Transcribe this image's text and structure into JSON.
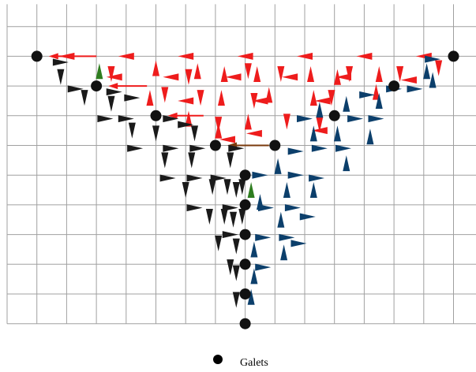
{
  "legend": {
    "label": "Galets",
    "marker_color": "#000000"
  },
  "colors": {
    "grid": "#a0a0a0",
    "galet": "#111111",
    "red": "#ee1c1c",
    "black": "#1a1a1a",
    "blue": "#0c3f6b",
    "green": "#2e7d1f",
    "brown": "#7a3a0c"
  },
  "grid": {
    "columns": 16,
    "rows": 11
  },
  "galets": [
    [
      1,
      2
    ],
    [
      3,
      3
    ],
    [
      5,
      4
    ],
    [
      7,
      5
    ],
    [
      8,
      6
    ],
    [
      8,
      7
    ],
    [
      8,
      8
    ],
    [
      8,
      9
    ],
    [
      8,
      10
    ],
    [
      8,
      11
    ],
    [
      9,
      5
    ],
    [
      11,
      4
    ],
    [
      13,
      3
    ],
    [
      15,
      2
    ]
  ],
  "arrows": [
    {
      "c": "red",
      "x": 2,
      "y": 2,
      "d": "L"
    },
    {
      "c": "red",
      "x": 4,
      "y": 2,
      "d": "L"
    },
    {
      "c": "red",
      "x": 6,
      "y": 2,
      "d": "L"
    },
    {
      "c": "red",
      "x": 8,
      "y": 2,
      "d": "L"
    },
    {
      "c": "red",
      "x": 10,
      "y": 2,
      "d": "L"
    },
    {
      "c": "red",
      "x": 12,
      "y": 2,
      "d": "L"
    },
    {
      "c": "red",
      "x": 14,
      "y": 2,
      "d": "L"
    },
    {
      "c": "red",
      "x": 3.5,
      "y": 2.6,
      "d": "D"
    },
    {
      "c": "red",
      "x": 5,
      "y": 2.4,
      "d": "U"
    },
    {
      "c": "red",
      "x": 6.1,
      "y": 2.7,
      "d": "D"
    },
    {
      "c": "red",
      "x": 6.4,
      "y": 2.5,
      "d": "U"
    },
    {
      "c": "red",
      "x": 7.3,
      "y": 2.6,
      "d": "U"
    },
    {
      "c": "red",
      "x": 8.1,
      "y": 2.5,
      "d": "D"
    },
    {
      "c": "red",
      "x": 8.4,
      "y": 2.6,
      "d": "U"
    },
    {
      "c": "red",
      "x": 9.2,
      "y": 2.6,
      "d": "D"
    },
    {
      "c": "red",
      "x": 10.2,
      "y": 2.6,
      "d": "U"
    },
    {
      "c": "red",
      "x": 11.1,
      "y": 2.7,
      "d": "U"
    },
    {
      "c": "red",
      "x": 11.5,
      "y": 2.6,
      "d": "D"
    },
    {
      "c": "red",
      "x": 12.5,
      "y": 2.6,
      "d": "U"
    },
    {
      "c": "red",
      "x": 13.2,
      "y": 2.6,
      "d": "D"
    },
    {
      "c": "red",
      "x": 14.5,
      "y": 2.4,
      "d": "D"
    },
    {
      "c": "red",
      "x": 3.6,
      "y": 2.7,
      "d": "L"
    },
    {
      "c": "red",
      "x": 5.5,
      "y": 2.7,
      "d": "L"
    },
    {
      "c": "red",
      "x": 7.6,
      "y": 2.7,
      "d": "L"
    },
    {
      "c": "red",
      "x": 9.5,
      "y": 2.7,
      "d": "L"
    },
    {
      "c": "red",
      "x": 11.3,
      "y": 2.7,
      "d": "L"
    },
    {
      "c": "red",
      "x": 13.5,
      "y": 2.8,
      "d": "L"
    },
    {
      "c": "red",
      "x": 4.8,
      "y": 3.4,
      "d": "U"
    },
    {
      "c": "red",
      "x": 5.3,
      "y": 3.3,
      "d": "D"
    },
    {
      "c": "red",
      "x": 6.5,
      "y": 3.4,
      "d": "D"
    },
    {
      "c": "red",
      "x": 7.2,
      "y": 3.4,
      "d": "U"
    },
    {
      "c": "red",
      "x": 8.3,
      "y": 3.5,
      "d": "D"
    },
    {
      "c": "red",
      "x": 8.8,
      "y": 3.3,
      "d": "U"
    },
    {
      "c": "red",
      "x": 10.3,
      "y": 3.4,
      "d": "U"
    },
    {
      "c": "red",
      "x": 10.9,
      "y": 3.4,
      "d": "D"
    },
    {
      "c": "red",
      "x": 12.4,
      "y": 3.2,
      "d": "U"
    },
    {
      "c": "red",
      "x": 6,
      "y": 3.5,
      "d": "L"
    },
    {
      "c": "red",
      "x": 8.5,
      "y": 3.5,
      "d": "L"
    },
    {
      "c": "red",
      "x": 10.6,
      "y": 3.5,
      "d": "L"
    },
    {
      "c": "red",
      "x": 6.1,
      "y": 4.1,
      "d": "U"
    },
    {
      "c": "red",
      "x": 7.1,
      "y": 4.3,
      "d": "D"
    },
    {
      "c": "red",
      "x": 8.1,
      "y": 4.2,
      "d": "U"
    },
    {
      "c": "red",
      "x": 9.4,
      "y": 4.2,
      "d": "D"
    },
    {
      "c": "red",
      "x": 10.5,
      "y": 4.3,
      "d": "D"
    },
    {
      "c": "red",
      "x": 7.1,
      "y": 4.5,
      "d": "U"
    },
    {
      "c": "red",
      "x": 8.3,
      "y": 4.6,
      "d": "L"
    },
    {
      "c": "red",
      "x": 10.5,
      "y": 4.5,
      "d": "L"
    },
    {
      "c": "red",
      "x": 7.4,
      "y": 4.8,
      "d": "L"
    },
    {
      "c": "black",
      "x": 1.8,
      "y": 2.2,
      "d": "R"
    },
    {
      "c": "black",
      "x": 1.8,
      "y": 2.7,
      "d": "D"
    },
    {
      "c": "black",
      "x": 2.3,
      "y": 3.1,
      "d": "R"
    },
    {
      "c": "black",
      "x": 2.6,
      "y": 3.4,
      "d": "D"
    },
    {
      "c": "black",
      "x": 3.6,
      "y": 3.2,
      "d": "R"
    },
    {
      "c": "black",
      "x": 3.5,
      "y": 3.6,
      "d": "D"
    },
    {
      "c": "black",
      "x": 4.2,
      "y": 3.4,
      "d": "R"
    },
    {
      "c": "black",
      "x": 3.3,
      "y": 4.1,
      "d": "R"
    },
    {
      "c": "black",
      "x": 4,
      "y": 4.1,
      "d": "R"
    },
    {
      "c": "black",
      "x": 4.2,
      "y": 4.5,
      "d": "D"
    },
    {
      "c": "black",
      "x": 5.5,
      "y": 4.1,
      "d": "R"
    },
    {
      "c": "black",
      "x": 5,
      "y": 4.6,
      "d": "D"
    },
    {
      "c": "black",
      "x": 6,
      "y": 4.3,
      "d": "R"
    },
    {
      "c": "black",
      "x": 6.3,
      "y": 4.6,
      "d": "D"
    },
    {
      "c": "black",
      "x": 4.3,
      "y": 5.1,
      "d": "R"
    },
    {
      "c": "black",
      "x": 5.5,
      "y": 5.1,
      "d": "R"
    },
    {
      "c": "black",
      "x": 5.3,
      "y": 5.5,
      "d": "D"
    },
    {
      "c": "black",
      "x": 6.4,
      "y": 5.1,
      "d": "R"
    },
    {
      "c": "black",
      "x": 6.2,
      "y": 5.5,
      "d": "D"
    },
    {
      "c": "black",
      "x": 7.7,
      "y": 5.1,
      "d": "R"
    },
    {
      "c": "black",
      "x": 7.5,
      "y": 5.5,
      "d": "D"
    },
    {
      "c": "black",
      "x": 5.4,
      "y": 6.1,
      "d": "R"
    },
    {
      "c": "black",
      "x": 6.3,
      "y": 6.1,
      "d": "R"
    },
    {
      "c": "black",
      "x": 6,
      "y": 6.5,
      "d": "D"
    },
    {
      "c": "black",
      "x": 7.1,
      "y": 6.1,
      "d": "R"
    },
    {
      "c": "black",
      "x": 6.9,
      "y": 6.4,
      "d": "D"
    },
    {
      "c": "black",
      "x": 7.4,
      "y": 6.4,
      "d": "D"
    },
    {
      "c": "black",
      "x": 7.7,
      "y": 6.5,
      "d": "D"
    },
    {
      "c": "black",
      "x": 7.9,
      "y": 6.4,
      "d": "D"
    },
    {
      "c": "black",
      "x": 6.3,
      "y": 7.1,
      "d": "R"
    },
    {
      "c": "black",
      "x": 6.8,
      "y": 7.4,
      "d": "D"
    },
    {
      "c": "black",
      "x": 7.3,
      "y": 7.4,
      "d": "D"
    },
    {
      "c": "black",
      "x": 7.5,
      "y": 7.1,
      "d": "R"
    },
    {
      "c": "black",
      "x": 7.6,
      "y": 7.5,
      "d": "D"
    },
    {
      "c": "black",
      "x": 7.9,
      "y": 7.4,
      "d": "D"
    },
    {
      "c": "black",
      "x": 7.1,
      "y": 8.3,
      "d": "D"
    },
    {
      "c": "black",
      "x": 7.5,
      "y": 8,
      "d": "R"
    },
    {
      "c": "black",
      "x": 7.7,
      "y": 8.4,
      "d": "D"
    },
    {
      "c": "black",
      "x": 7.5,
      "y": 9.1,
      "d": "D"
    },
    {
      "c": "black",
      "x": 7.7,
      "y": 9.3,
      "d": "D"
    },
    {
      "c": "black",
      "x": 7.7,
      "y": 10.2,
      "d": "D"
    },
    {
      "c": "blue",
      "x": 14.3,
      "y": 2.1,
      "d": "R"
    },
    {
      "c": "blue",
      "x": 14.1,
      "y": 2.5,
      "d": "U"
    },
    {
      "c": "blue",
      "x": 13,
      "y": 3.1,
      "d": "R"
    },
    {
      "c": "blue",
      "x": 13.7,
      "y": 3.1,
      "d": "R"
    },
    {
      "c": "blue",
      "x": 14.3,
      "y": 2.8,
      "d": "U"
    },
    {
      "c": "blue",
      "x": 12.5,
      "y": 3.5,
      "d": "U"
    },
    {
      "c": "blue",
      "x": 12.1,
      "y": 3.3,
      "d": "R"
    },
    {
      "c": "blue",
      "x": 10,
      "y": 4.1,
      "d": "R"
    },
    {
      "c": "blue",
      "x": 10.5,
      "y": 3.8,
      "d": "U"
    },
    {
      "c": "blue",
      "x": 11.4,
      "y": 3.6,
      "d": "U"
    },
    {
      "c": "blue",
      "x": 11.7,
      "y": 4.1,
      "d": "R"
    },
    {
      "c": "blue",
      "x": 12.4,
      "y": 4.1,
      "d": "R"
    },
    {
      "c": "blue",
      "x": 12.2,
      "y": 4.7,
      "d": "U"
    },
    {
      "c": "blue",
      "x": 11.1,
      "y": 4.6,
      "d": "U"
    },
    {
      "c": "blue",
      "x": 9.7,
      "y": 5.2,
      "d": "R"
    },
    {
      "c": "blue",
      "x": 10.3,
      "y": 4.6,
      "d": "U"
    },
    {
      "c": "blue",
      "x": 10.5,
      "y": 5.1,
      "d": "R"
    },
    {
      "c": "blue",
      "x": 11.3,
      "y": 5.1,
      "d": "R"
    },
    {
      "c": "blue",
      "x": 11.4,
      "y": 5.6,
      "d": "U"
    },
    {
      "c": "blue",
      "x": 8.5,
      "y": 6,
      "d": "R"
    },
    {
      "c": "blue",
      "x": 9.1,
      "y": 5.7,
      "d": "U"
    },
    {
      "c": "blue",
      "x": 9.7,
      "y": 6,
      "d": "R"
    },
    {
      "c": "blue",
      "x": 10.4,
      "y": 6.1,
      "d": "R"
    },
    {
      "c": "blue",
      "x": 10.3,
      "y": 6.5,
      "d": "U"
    },
    {
      "c": "blue",
      "x": 9.4,
      "y": 6.5,
      "d": "U"
    },
    {
      "c": "blue",
      "x": 8.7,
      "y": 7.1,
      "d": "R"
    },
    {
      "c": "blue",
      "x": 9.2,
      "y": 7.5,
      "d": "U"
    },
    {
      "c": "blue",
      "x": 9.6,
      "y": 7.1,
      "d": "R"
    },
    {
      "c": "blue",
      "x": 10.1,
      "y": 7.4,
      "d": "R"
    },
    {
      "c": "blue",
      "x": 8.5,
      "y": 6.9,
      "d": "U"
    },
    {
      "c": "blue",
      "x": 8.6,
      "y": 8.1,
      "d": "R"
    },
    {
      "c": "blue",
      "x": 8.3,
      "y": 8.5,
      "d": "U"
    },
    {
      "c": "blue",
      "x": 9.4,
      "y": 8.1,
      "d": "R"
    },
    {
      "c": "blue",
      "x": 9.3,
      "y": 8.6,
      "d": "U"
    },
    {
      "c": "blue",
      "x": 9.8,
      "y": 8.3,
      "d": "R"
    },
    {
      "c": "blue",
      "x": 8.6,
      "y": 9.1,
      "d": "R"
    },
    {
      "c": "blue",
      "x": 8.3,
      "y": 9.4,
      "d": "U"
    },
    {
      "c": "blue",
      "x": 8.2,
      "y": 10.1,
      "d": "U"
    },
    {
      "c": "green",
      "x": 3.1,
      "y": 2.5,
      "d": "U"
    },
    {
      "c": "green",
      "x": 8.2,
      "y": 6.5,
      "d": "U"
    }
  ],
  "long_arrows": [
    {
      "c": "red",
      "x1": 3,
      "y1": 2,
      "x2": 1.4,
      "y2": 2
    },
    {
      "c": "red",
      "x1": 4.7,
      "y1": 3,
      "x2": 3.4,
      "y2": 3
    },
    {
      "c": "red",
      "x1": 6.6,
      "y1": 4,
      "x2": 5.4,
      "y2": 4
    },
    {
      "c": "brown",
      "x1": 8.8,
      "y1": 5,
      "x2": 7.4,
      "y2": 5
    }
  ]
}
